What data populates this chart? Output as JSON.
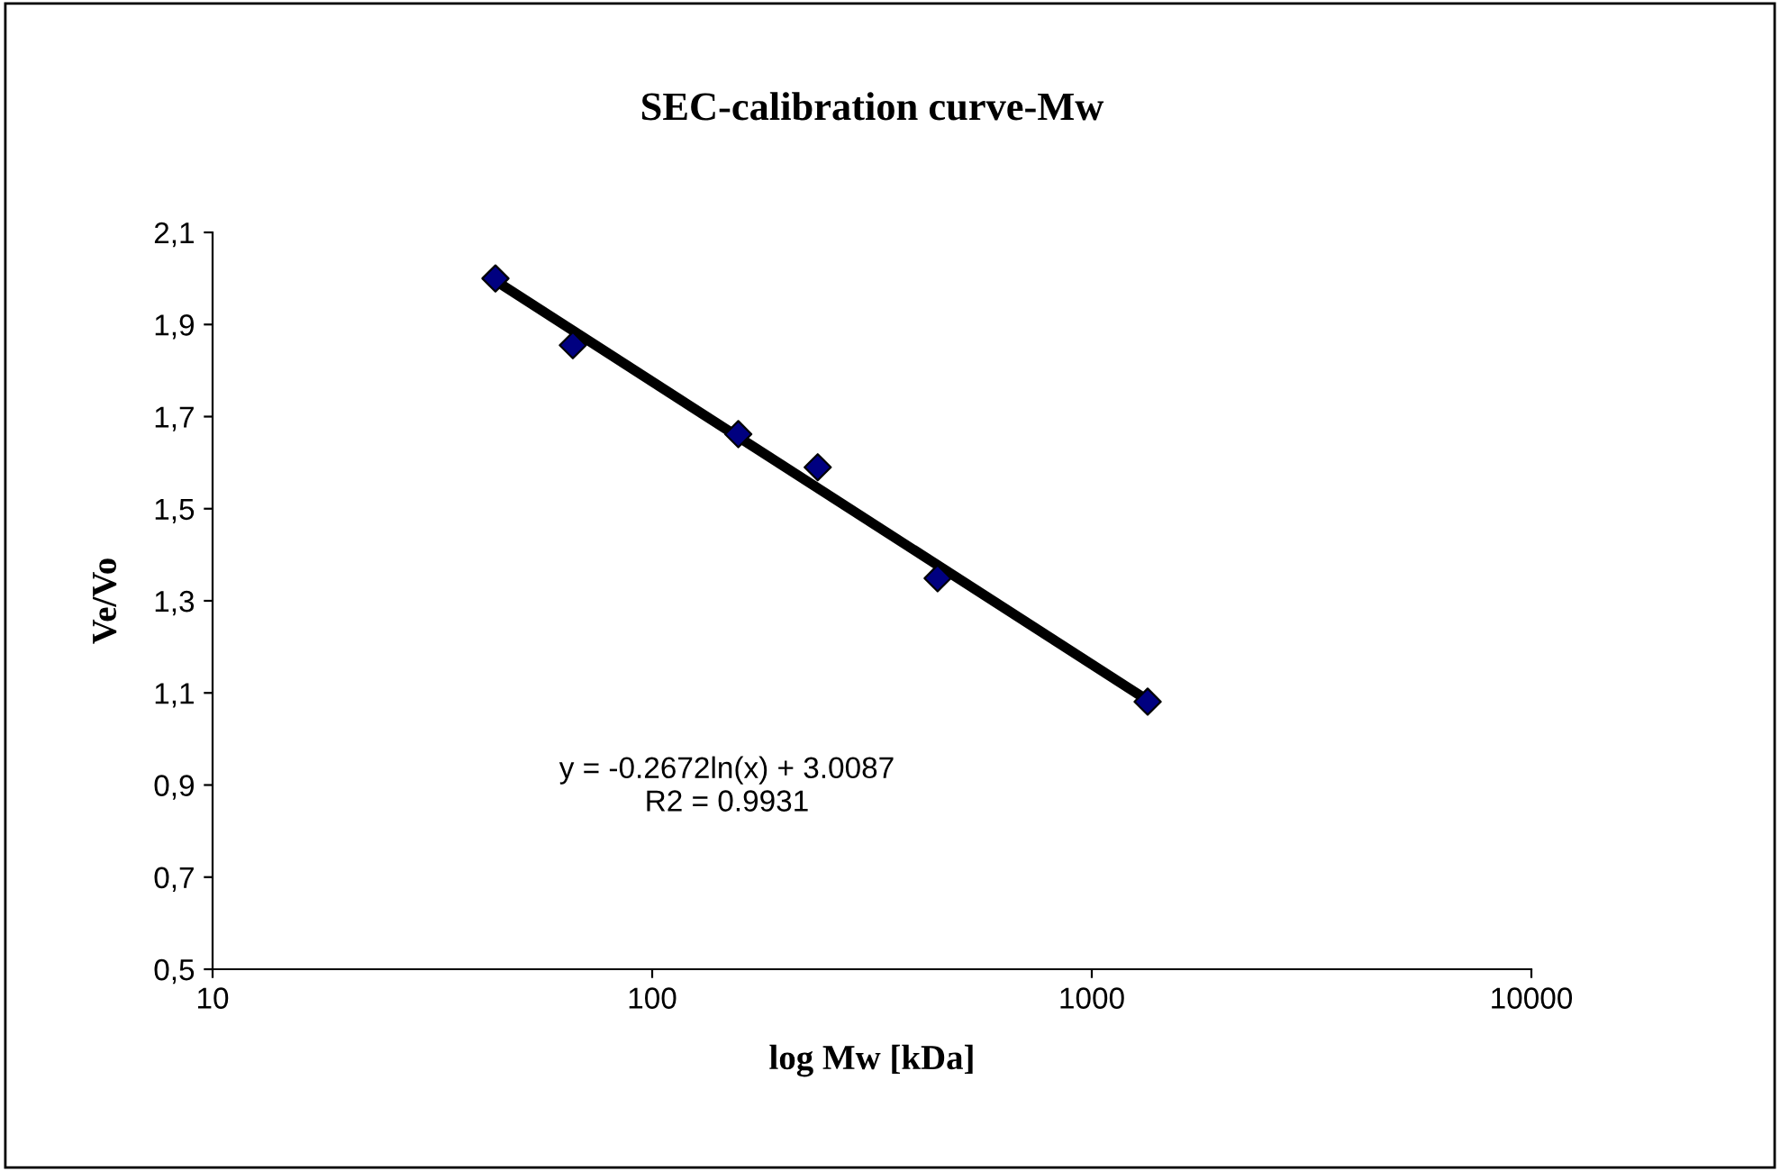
{
  "chart_data": {
    "type": "scatter",
    "title": "SEC-calibration curve-Mw",
    "xlabel": "log Mw [kDa]",
    "ylabel": "Ve/Vo",
    "log": "x",
    "x": [
      44,
      66,
      157,
      238,
      446,
      1340
    ],
    "series": [
      {
        "color": "#000080",
        "marker": "diamond",
        "values": [
          2.0,
          1.855,
          1.662,
          1.59,
          1.349,
          1.081
        ]
      },
      {
        "type": "line",
        "color": "#000000",
        "marker": "none",
        "x": [
          44,
          1350
        ],
        "values": [
          1.995,
          1.082
        ]
      }
    ],
    "xlim": [
      10,
      10000
    ],
    "xticks": [
      10,
      100,
      1000,
      10000
    ],
    "ylim": [
      0.5,
      2.1
    ],
    "yticks": [
      {
        "value": 0.5,
        "label": "0,5"
      },
      {
        "value": 0.7,
        "label": "0,7"
      },
      {
        "value": 0.9,
        "label": "0,9"
      },
      {
        "value": 1.1,
        "label": "1,1"
      },
      {
        "value": 1.3,
        "label": "1,3"
      },
      {
        "value": 1.5,
        "label": "1,5"
      },
      {
        "value": 1.7,
        "label": "1,7"
      },
      {
        "value": 1.9,
        "label": "1,9"
      },
      {
        "value": 2.1,
        "label": "2,1"
      }
    ],
    "grid": false,
    "legend": false,
    "annotations": [
      "y = -0.2672ln(x) + 3.0087",
      "R2 = 0.9931"
    ]
  }
}
